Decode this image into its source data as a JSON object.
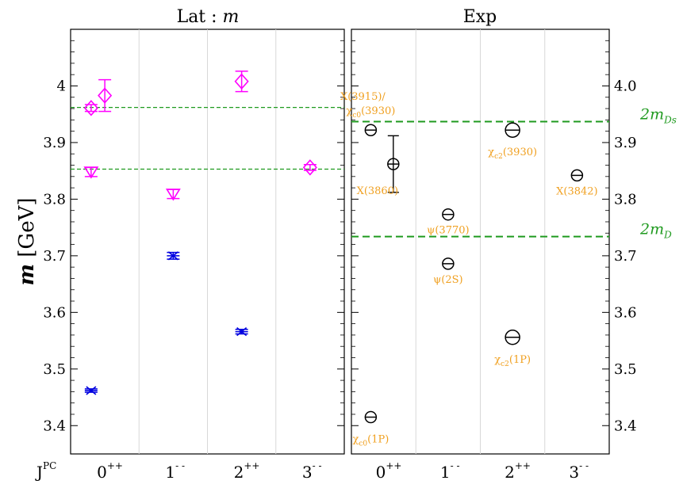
{
  "chart_data": [
    {
      "type": "scatter",
      "title_main": "Lat : ",
      "title_em": "m",
      "ylabel_main": "m",
      "ylabel_unit": " [GeV]",
      "categories": [
        {
          "base": "0",
          "sup": "++"
        },
        {
          "base": "1",
          "sup": "- -"
        },
        {
          "base": "2",
          "sup": "++"
        },
        {
          "base": "3",
          "sup": "- -"
        }
      ],
      "category_axis_label": {
        "base": "J",
        "sup": "PC"
      },
      "ylim": [
        3.35,
        4.1
      ],
      "yticks": [
        "3.4",
        "3.5",
        "3.6",
        "3.7",
        "3.8",
        "3.9",
        "4"
      ],
      "reference_lines": [
        3.962,
        3.853
      ],
      "colors": {
        "magenta": "#ff00ff",
        "blue": "#0000e0",
        "threshold": "#1f9a1f"
      },
      "points": [
        {
          "cat": 0,
          "offset": -0.2,
          "y": 3.462,
          "err": 0.003,
          "marker": "star",
          "color": "blue"
        },
        {
          "cat": 0,
          "offset": -0.2,
          "y": 3.848,
          "err": 0.008,
          "marker": "triangle-down",
          "color": "magenta"
        },
        {
          "cat": 0,
          "offset": -0.2,
          "y": 3.961,
          "err": 0.006,
          "marker": "diamond",
          "color": "magenta"
        },
        {
          "cat": 0,
          "offset": 0.0,
          "y": 3.983,
          "err": 0.028,
          "marker": "diamond",
          "color": "magenta"
        },
        {
          "cat": 1,
          "offset": 0.0,
          "y": 3.7,
          "err": 0.006,
          "marker": "star",
          "color": "blue"
        },
        {
          "cat": 1,
          "offset": 0.0,
          "y": 3.809,
          "err": 0.008,
          "marker": "triangle-down",
          "color": "magenta"
        },
        {
          "cat": 2,
          "offset": 0.0,
          "y": 3.566,
          "err": 0.004,
          "marker": "star",
          "color": "blue"
        },
        {
          "cat": 2,
          "offset": 0.0,
          "y": 4.008,
          "err": 0.018,
          "marker": "diamond",
          "color": "magenta"
        },
        {
          "cat": 3,
          "offset": 0.0,
          "y": 3.856,
          "err": 0.005,
          "marker": "diamond",
          "color": "magenta"
        }
      ]
    },
    {
      "type": "scatter",
      "title": "Exp",
      "categories": [
        {
          "base": "0",
          "sup": "++"
        },
        {
          "base": "1",
          "sup": "- -"
        },
        {
          "base": "2",
          "sup": "++"
        },
        {
          "base": "3",
          "sup": "- -"
        }
      ],
      "ylim": [
        3.35,
        4.1
      ],
      "yticks": [
        "3.4",
        "3.5",
        "3.6",
        "3.7",
        "3.8",
        "3.9",
        "4.0"
      ],
      "thresholds": [
        {
          "y": 3.937,
          "label_main": "2m",
          "label_sub": "Ds"
        },
        {
          "y": 3.734,
          "label_main": "2m",
          "label_sub": "D"
        }
      ],
      "points": [
        {
          "cat": 0,
          "offset": -0.2,
          "y": 3.415,
          "err": 0.0,
          "label_pre": "χ",
          "label_sub": "c0",
          "label_post": "(1P)",
          "label_dx": 0,
          "label_dy": 32
        },
        {
          "cat": 0,
          "offset": -0.2,
          "y": 3.922,
          "err": 0.0,
          "label_pre": "X(3915)/",
          "label_sub": "",
          "label_post": "",
          "label_dx": -10,
          "label_dy": -38
        },
        {
          "cat": 0,
          "offset": 0.15,
          "y": 3.862,
          "err": 0.05,
          "label_pre": "X(3860)",
          "label_sub": "",
          "label_post": "",
          "label_dx": -20,
          "label_dy": 38
        },
        {
          "cat": 1,
          "offset": 0.0,
          "y": 3.773,
          "err": 0.0,
          "label_pre": "ψ(3770)",
          "label_sub": "",
          "label_post": "",
          "label_dx": 0,
          "label_dy": 24
        },
        {
          "cat": 1,
          "offset": 0.0,
          "y": 3.686,
          "err": 0.0,
          "label_pre": "ψ(2S)",
          "label_sub": "",
          "label_post": "",
          "label_dx": 0,
          "label_dy": 24
        },
        {
          "cat": 2,
          "offset": 0.0,
          "y": 3.922,
          "err": 0.0,
          "label_pre": "χ",
          "label_sub": "c2",
          "label_post": "(3930)",
          "label_dx": 0,
          "label_dy": 32
        },
        {
          "cat": 2,
          "offset": 0.0,
          "y": 3.556,
          "err": 0.0,
          "label_pre": "χ",
          "label_sub": "c2",
          "label_post": "(1P)",
          "label_dx": 0,
          "label_dy": 32
        },
        {
          "cat": 3,
          "offset": 0.0,
          "y": 3.842,
          "err": 0.0,
          "label_pre": "X(3842)",
          "label_sub": "",
          "label_post": "",
          "label_dx": 0,
          "label_dy": 24
        }
      ],
      "extra_labels": [
        {
          "cat": 0,
          "offset": -0.2,
          "y": 3.922,
          "pre": "χ",
          "sub": "c0",
          "post": "(3930)",
          "dx": 0,
          "dy": -20
        }
      ]
    }
  ]
}
